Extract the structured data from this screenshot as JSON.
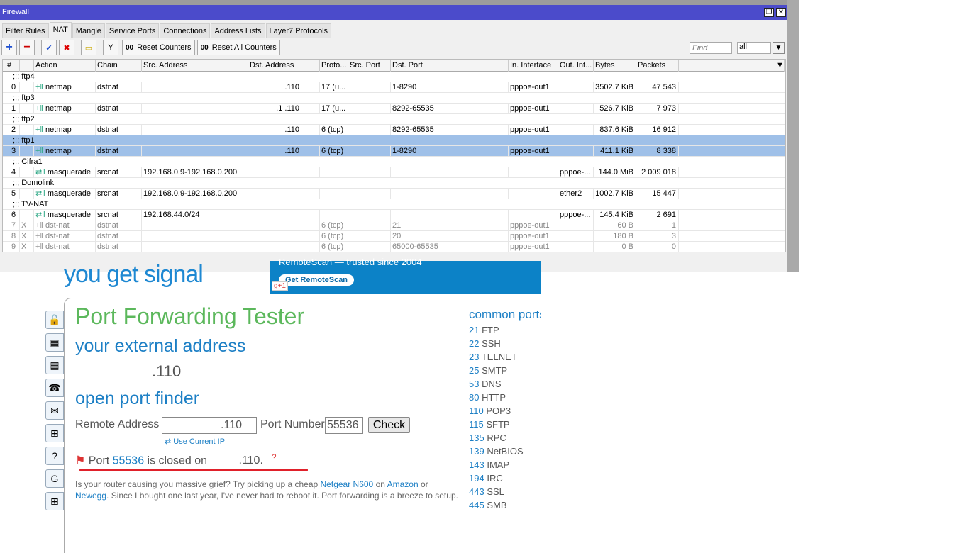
{
  "window": {
    "title": "Firewall",
    "restore": "❐",
    "close": "✕"
  },
  "tabs": [
    "Filter Rules",
    "NAT",
    "Mangle",
    "Service Ports",
    "Connections",
    "Address Lists",
    "Layer7 Protocols"
  ],
  "active_tab": "NAT",
  "toolbar": {
    "add": "+",
    "remove": "−",
    "enable": "✔",
    "disable": "✖",
    "comment": "▭",
    "filter": "Y",
    "reset_counters": "Reset Counters",
    "reset_all_counters": "Reset All Counters",
    "counter_icon": "00",
    "find_placeholder": "Find",
    "filter_value": "all",
    "drop": "▼"
  },
  "columns": [
    "#",
    "",
    "Action",
    "Chain",
    "Src. Address",
    "Dst. Address",
    "Proto...",
    "Src. Port",
    "Dst. Port",
    "In. Interface",
    "Out. Int...",
    "Bytes",
    "Packets"
  ],
  "rules": [
    {
      "comment": ";;; ftp4",
      "num": "0",
      "flag": "",
      "action": "netmap",
      "chain": "dstnat",
      "src": "",
      "dst": ".110",
      "proto": "17 (u...",
      "sport": "",
      "dport": "1-8290",
      "in": "pppoe-out1",
      "out": "",
      "bytes": "3502.7 KiB",
      "packets": "47 543"
    },
    {
      "comment": ";;; ftp3",
      "num": "1",
      "flag": "",
      "action": "netmap",
      "chain": "dstnat",
      "src": "",
      "dst": ".1    .110",
      "proto": "17 (u...",
      "sport": "",
      "dport": "8292-65535",
      "in": "pppoe-out1",
      "out": "",
      "bytes": "526.7 KiB",
      "packets": "7 973"
    },
    {
      "comment": ";;; ftp2",
      "num": "2",
      "flag": "",
      "action": "netmap",
      "chain": "dstnat",
      "src": "",
      "dst": ".110",
      "proto": "6 (tcp)",
      "sport": "",
      "dport": "8292-65535",
      "in": "pppoe-out1",
      "out": "",
      "bytes": "837.6 KiB",
      "packets": "16 912"
    },
    {
      "comment": ";;; ftp1",
      "num": "3",
      "flag": "",
      "action": "netmap",
      "chain": "dstnat",
      "src": "",
      "dst": ".110",
      "proto": "6 (tcp)",
      "sport": "",
      "dport": "1-8290",
      "in": "pppoe-out1",
      "out": "",
      "bytes": "411.1 KiB",
      "packets": "8 338",
      "selected": true
    },
    {
      "comment": ";;; Cifra1",
      "num": "4",
      "flag": "",
      "action": "masquerade",
      "chain": "srcnat",
      "src": "192.168.0.9-192.168.0.200",
      "dst": "",
      "proto": "",
      "sport": "",
      "dport": "",
      "in": "",
      "out": "pppoe-...",
      "bytes": "144.0 MiB",
      "packets": "2 009 018"
    },
    {
      "comment": ";;; Domolink",
      "num": "5",
      "flag": "",
      "action": "masquerade",
      "chain": "srcnat",
      "src": "192.168.0.9-192.168.0.200",
      "dst": "",
      "proto": "",
      "sport": "",
      "dport": "",
      "in": "",
      "out": "ether2",
      "bytes": "1002.7 KiB",
      "packets": "15 447"
    },
    {
      "comment": ";;; TV-NAT",
      "num": "6",
      "flag": "",
      "action": "masquerade",
      "chain": "srcnat",
      "src": "192.168.44.0/24",
      "dst": "",
      "proto": "",
      "sport": "",
      "dport": "",
      "in": "",
      "out": "pppoe-...",
      "bytes": "145.4 KiB",
      "packets": "2 691"
    },
    {
      "comment": "",
      "num": "7",
      "flag": "X",
      "action": "dst-nat",
      "chain": "dstnat",
      "src": "",
      "dst": "",
      "proto": "6 (tcp)",
      "sport": "",
      "dport": "21",
      "in": "pppoe-out1",
      "out": "",
      "bytes": "60 B",
      "packets": "1",
      "disabled": true
    },
    {
      "comment": "",
      "num": "8",
      "flag": "X",
      "action": "dst-nat",
      "chain": "dstnat",
      "src": "",
      "dst": "",
      "proto": "6 (tcp)",
      "sport": "",
      "dport": "20",
      "in": "pppoe-out1",
      "out": "",
      "bytes": "180 B",
      "packets": "3",
      "disabled": true
    },
    {
      "comment": "",
      "num": "9",
      "flag": "X",
      "action": "dst-nat",
      "chain": "dstnat",
      "src": "",
      "dst": "",
      "proto": "6 (tcp)",
      "sport": "",
      "dport": "65000-65535",
      "in": "pppoe-out1",
      "out": "",
      "bytes": "0 B",
      "packets": "0",
      "disabled": true
    }
  ],
  "web": {
    "logo": "you get signal",
    "ad_text": "RemoteScan — trusted since 2004",
    "ad_button": "Get RemoteScan",
    "gplus": "g+1",
    "title": "Port Forwarding Tester",
    "external_heading": "your external address",
    "external_ip": ".110",
    "finder_heading": "open port finder",
    "remote_label": "Remote Address",
    "remote_value": ".110",
    "port_label": "Port Number",
    "port_value": "55536",
    "check": "Check",
    "use_current": "Use Current IP",
    "result_pre": "Port",
    "result_port": "55536",
    "result_mid": "is closed on",
    "result_ip": ".110.",
    "result_help": "?",
    "para": [
      {
        "t": "Is your router causing you massive grief? Try picking up a cheap "
      },
      {
        "t": "Netgear N600",
        "link": true
      },
      {
        "t": " on "
      },
      {
        "t": "Amazon",
        "link": true
      },
      {
        "t": " or "
      },
      {
        "t": "Newegg",
        "link": true
      },
      {
        "t": ". Since I bought one last year, I've never had to reboot it. Port forwarding is a breeze to setup."
      }
    ],
    "common_heading": "common ports",
    "ports": [
      [
        "21",
        "FTP"
      ],
      [
        "22",
        "SSH"
      ],
      [
        "23",
        "TELNET"
      ],
      [
        "25",
        "SMTP"
      ],
      [
        "53",
        "DNS"
      ],
      [
        "80",
        "HTTP"
      ],
      [
        "110",
        "POP3"
      ],
      [
        "115",
        "SFTP"
      ],
      [
        "135",
        "RPC"
      ],
      [
        "139",
        "NetBIOS"
      ],
      [
        "143",
        "IMAP"
      ],
      [
        "194",
        "IRC"
      ],
      [
        "443",
        "SSL"
      ],
      [
        "445",
        "SMB"
      ]
    ],
    "side_icons": [
      "lock-icon",
      "map-icon",
      "map-arrow-icon",
      "phone-icon",
      "mail-icon",
      "network-icon",
      "help-icon",
      "google-icon",
      "windows-icon"
    ]
  }
}
